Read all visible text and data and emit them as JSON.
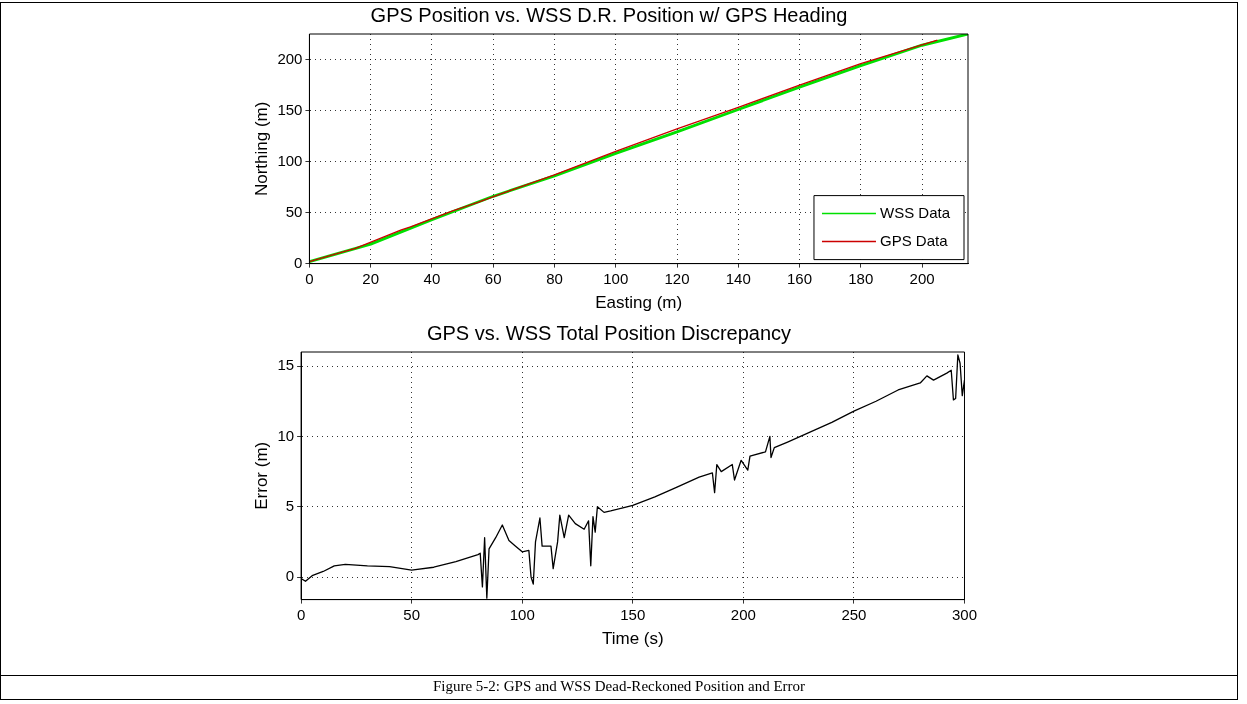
{
  "chart_data": [
    {
      "type": "line",
      "title": "GPS Position vs. WSS D.R. Position w/ GPS Heading",
      "xlabel": "Easting (m)",
      "ylabel": "Northing (m)",
      "xlim": [
        0,
        215
      ],
      "ylim": [
        0,
        225
      ],
      "xticks": [
        0,
        20,
        40,
        60,
        80,
        100,
        120,
        140,
        160,
        180,
        200
      ],
      "yticks": [
        0,
        50,
        100,
        150,
        200
      ],
      "grid": true,
      "legend": "bottom right",
      "series": [
        {
          "name": "WSS Data",
          "color": "#00e000",
          "x": [
            0,
            20,
            40,
            60,
            80,
            100,
            120,
            140,
            160,
            180,
            200,
            215
          ],
          "values": [
            2,
            19,
            43,
            66,
            86,
            108,
            129,
            151,
            173,
            194,
            214,
            225
          ]
        },
        {
          "name": "GPS Data",
          "color": "#cc0000",
          "x": [
            0,
            15,
            30,
            33,
            47,
            55,
            65,
            80,
            100,
            120,
            140,
            160,
            180,
            205
          ],
          "values": [
            2,
            15,
            33,
            36,
            52,
            60,
            71,
            87,
            110,
            132,
            153,
            175,
            196,
            219
          ]
        }
      ]
    },
    {
      "type": "line",
      "title": "GPS vs. WSS Total Position Discrepancy",
      "xlabel": "Time (s)",
      "ylabel": "Error (m)",
      "xlim": [
        0,
        300
      ],
      "ylim": [
        -1.6,
        16
      ],
      "xticks": [
        0,
        50,
        100,
        150,
        200,
        250,
        300
      ],
      "yticks": [
        0,
        5,
        10,
        15
      ],
      "grid": true,
      "annotations": [
        "Figure 5-2: GPS and WSS Dead-Reckoned Position and Error"
      ],
      "series": [
        {
          "color": "#000000",
          "x": [
            0,
            2,
            5,
            10,
            15,
            20,
            30,
            40,
            50,
            60,
            70,
            80,
            81,
            82,
            83,
            84,
            85,
            88,
            91,
            94,
            97,
            100,
            103,
            104,
            105,
            106,
            108,
            109,
            113,
            114,
            116,
            117,
            119,
            121,
            124,
            128,
            130,
            131,
            132,
            133,
            134,
            137,
            140,
            150,
            160,
            170,
            180,
            186,
            187,
            188,
            190,
            195,
            196,
            199,
            202,
            203,
            210,
            212,
            212.5,
            214,
            220,
            240,
            250,
            260,
            270,
            280,
            283,
            286,
            292,
            294,
            295,
            296,
            297,
            298,
            299,
            300
          ],
          "values": [
            -0.1,
            -0.3,
            0.1,
            0.4,
            0.8,
            0.9,
            0.8,
            0.75,
            0.5,
            0.7,
            1.1,
            1.6,
            1.7,
            -0.7,
            2.8,
            -1.5,
            2.0,
            2.8,
            3.7,
            2.6,
            2.2,
            1.8,
            1.9,
            0.0,
            -0.5,
            2.5,
            4.2,
            2.2,
            2.2,
            0.6,
            2.5,
            4.4,
            2.8,
            4.4,
            3.8,
            3.4,
            4.0,
            0.8,
            4.3,
            3.2,
            5.0,
            4.6,
            4.7,
            5.1,
            5.7,
            6.4,
            7.1,
            7.4,
            6.0,
            8.0,
            7.5,
            8.0,
            6.9,
            8.3,
            7.6,
            8.6,
            8.9,
            10.0,
            8.5,
            9.2,
            9.6,
            11.0,
            11.8,
            12.5,
            13.3,
            13.8,
            14.3,
            14.0,
            14.5,
            14.7,
            12.6,
            12.7,
            15.8,
            15.2,
            12.9,
            14.0
          ]
        }
      ]
    }
  ]
}
